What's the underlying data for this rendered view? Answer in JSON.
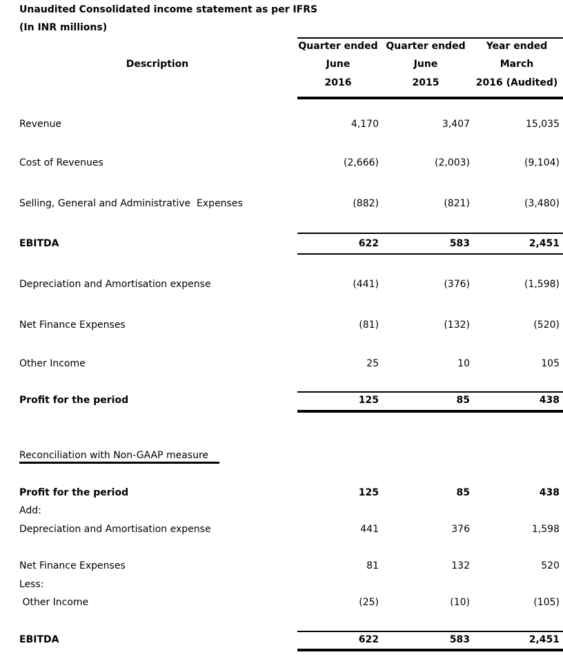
{
  "title": "Unaudited Consolidated income statement as per IFRS",
  "subtitle": "(In INR millions)",
  "header": {
    "description": "Description",
    "columns": [
      {
        "line1": "Quarter ended",
        "line2": "June",
        "line3": "2016"
      },
      {
        "line1": "Quarter ended",
        "line2": "June",
        "line3": "2015"
      },
      {
        "line1": "Year ended",
        "line2": "March",
        "line3": "2016 (Audited)"
      }
    ]
  },
  "rows": [
    {
      "label": "Revenue",
      "values": [
        "4,170",
        "3,407",
        "15,035"
      ],
      "bold": false
    },
    {
      "label": "Cost of Revenues",
      "values": [
        "(2,666)",
        "(2,003)",
        "(9,104)"
      ],
      "bold": false
    },
    {
      "label": "Selling, General and Administrative  Expenses",
      "values": [
        "(882)",
        "(821)",
        "(3,480)"
      ],
      "bold": false
    },
    {
      "label": "EBITDA",
      "values": [
        "622",
        "583",
        "2,451"
      ],
      "bold": true
    },
    {
      "label": "Depreciation and Amortisation expense",
      "values": [
        "(441)",
        "(376)",
        "(1,598)"
      ],
      "bold": false
    },
    {
      "label": "Net Finance Expenses",
      "values": [
        "(81)",
        "(132)",
        "(520)"
      ],
      "bold": false
    },
    {
      "label": "Other Income",
      "values": [
        "25",
        "10",
        "105"
      ],
      "bold": false
    },
    {
      "label": "Profit for the period",
      "values": [
        "125",
        "85",
        "438"
      ],
      "bold": true
    }
  ],
  "reconciliation": {
    "heading": "Reconciliation with Non-GAAP measure",
    "rows": [
      {
        "label": "Profit for the period",
        "values": [
          "125",
          "85",
          "438"
        ],
        "bold": true
      },
      {
        "label": "Add:",
        "values": [],
        "bold": false
      },
      {
        "label": "Depreciation and Amortisation expense",
        "values": [
          "441",
          "376",
          "1,598"
        ],
        "bold": false
      },
      {
        "label": "Net Finance Expenses",
        "values": [
          "81",
          "132",
          "520"
        ],
        "bold": false
      },
      {
        "label": "Less:",
        "values": [],
        "bold": false
      },
      {
        "label": " Other Income",
        "values": [
          "(25)",
          "(10)",
          "(105)"
        ],
        "bold": false
      },
      {
        "label": "EBITDA",
        "values": [
          "622",
          "583",
          "2,451"
        ],
        "bold": true
      }
    ]
  }
}
